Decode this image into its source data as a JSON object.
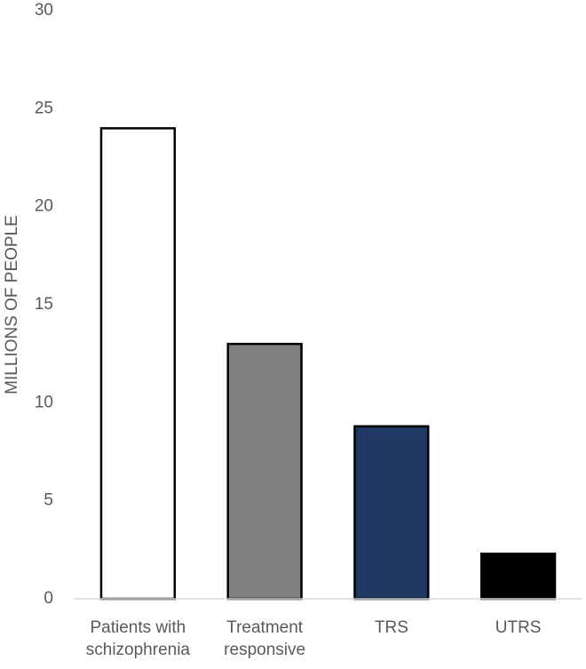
{
  "chart_data": {
    "type": "bar",
    "y_label": "MILLIONS OF PEOPLE",
    "categories": [
      "Patients with schizophrenia",
      "Treatment responsive",
      "TRS",
      "UTRS"
    ],
    "values": [
      24,
      13,
      8.8,
      2.3
    ],
    "colors": [
      "#ffffff",
      "#808080",
      "#203864",
      "#000000"
    ],
    "ylim": [
      0,
      30
    ],
    "yticks": [
      0,
      5,
      10,
      15,
      20,
      25,
      30
    ],
    "grid": false
  }
}
